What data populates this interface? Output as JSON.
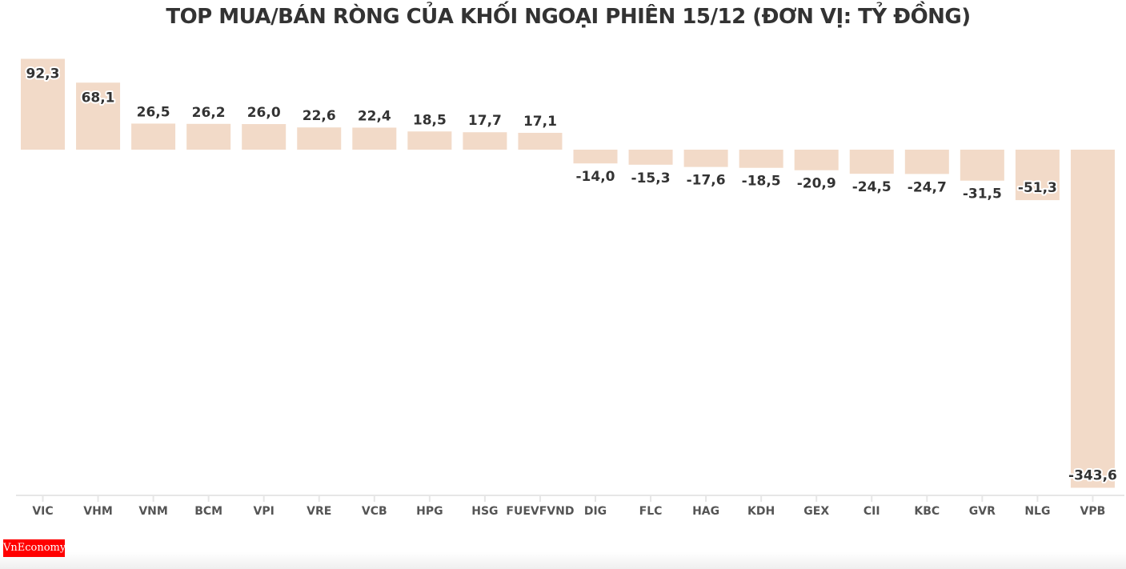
{
  "chart_data": {
    "type": "bar",
    "title": "TOP MUA/BÁN RÒNG CỦA KHỐI NGOẠI PHIÊN 15/12 (ĐƠN VỊ: TỶ ĐỒNG)",
    "categories": [
      "VIC",
      "VHM",
      "VNM",
      "BCM",
      "VPI",
      "VRE",
      "VCB",
      "HPG",
      "HSG",
      "FUEVFVND",
      "DIG",
      "FLC",
      "HAG",
      "KDH",
      "GEX",
      "CII",
      "KBC",
      "GVR",
      "NLG",
      "VPB"
    ],
    "values": [
      92.3,
      68.1,
      26.5,
      26.2,
      26.0,
      22.6,
      22.4,
      18.5,
      17.7,
      17.1,
      -14.0,
      -15.3,
      -17.6,
      -18.5,
      -20.9,
      -24.5,
      -24.7,
      -31.5,
      -51.3,
      -343.6
    ],
    "labels": [
      "92,3",
      "68,1",
      "26,5",
      "26,2",
      "26,0",
      "22,6",
      "22,4",
      "18,5",
      "17,7",
      "17,1",
      "-14,0",
      "-15,3",
      "-17,6",
      "-18,5",
      "-20,9",
      "-24,5",
      "-24,7",
      "-31,5",
      "-51,3",
      "-343,6"
    ],
    "xlabel": "",
    "ylabel": "",
    "ylim": [
      -343.6,
      92.3
    ],
    "grid": false,
    "bar_color": "#f2dac8"
  },
  "logo": {
    "text": "VnEconomy"
  }
}
